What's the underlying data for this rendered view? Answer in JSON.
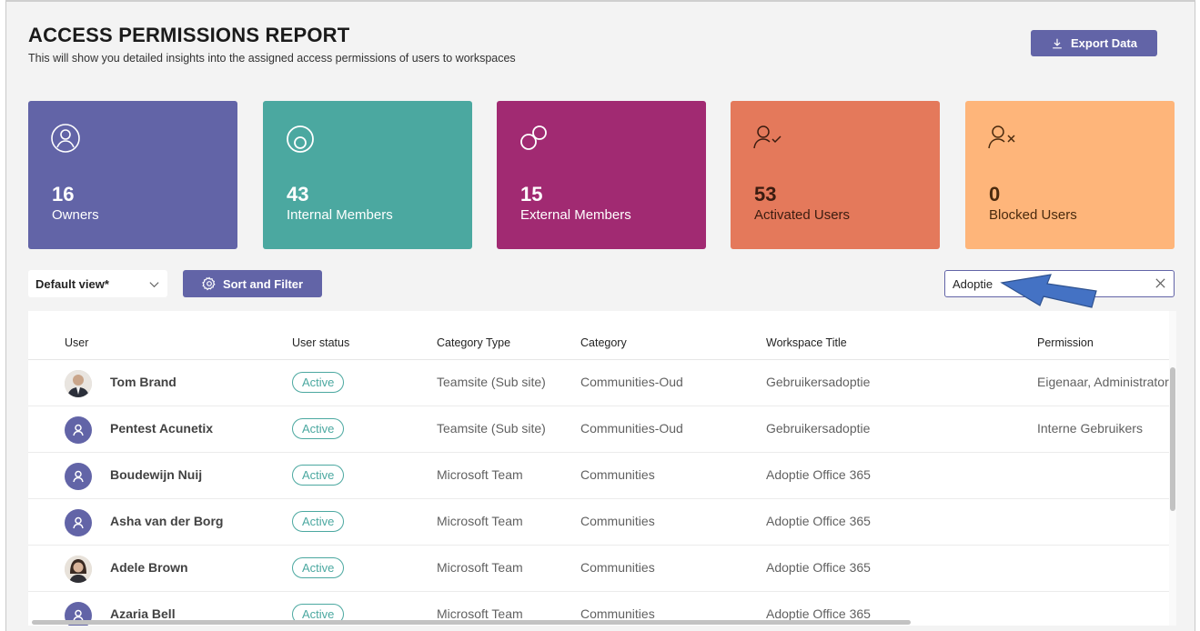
{
  "header": {
    "title": "ACCESS PERMISSIONS REPORT",
    "subtitle": "This will show you detailed insights into the assigned access permissions of users to workspaces",
    "export_label": "Export Data"
  },
  "cards": [
    {
      "value": "16",
      "label": "Owners",
      "icon": "user-circle-icon",
      "color": "#6264a7"
    },
    {
      "value": "43",
      "label": "Internal Members",
      "icon": "internal-member-icon",
      "color": "#4ba8a0"
    },
    {
      "value": "15",
      "label": "External Members",
      "icon": "external-member-icon",
      "color": "#a12a72"
    },
    {
      "value": "53",
      "label": "Activated Users",
      "icon": "user-check-icon",
      "color": "#e4795b"
    },
    {
      "value": "0",
      "label": "Blocked Users",
      "icon": "user-blocked-icon",
      "color": "#feb57a"
    }
  ],
  "toolbar": {
    "view_label": "Default view*",
    "sort_label": "Sort and Filter",
    "search_value": "Adoptie"
  },
  "table": {
    "columns": [
      "User",
      "User status",
      "Category Type",
      "Category",
      "Workspace Title",
      "Permission"
    ],
    "rows": [
      {
        "user": "Tom Brand",
        "status": "Active",
        "category_type": "Teamsite (Sub site)",
        "category": "Communities-Oud",
        "workspace": "Gebruikersadoptie",
        "permission": "Eigenaar, Administrator",
        "avatar": "photo"
      },
      {
        "user": "Pentest Acunetix",
        "status": "Active",
        "category_type": "Teamsite (Sub site)",
        "category": "Communities-Oud",
        "workspace": "Gebruikersadoptie",
        "permission": "Interne Gebruikers",
        "avatar": "default"
      },
      {
        "user": "Boudewijn Nuij",
        "status": "Active",
        "category_type": "Microsoft Team",
        "category": "Communities",
        "workspace": "Adoptie Office 365",
        "permission": "",
        "avatar": "default"
      },
      {
        "user": "Asha van der Borg",
        "status": "Active",
        "category_type": "Microsoft Team",
        "category": "Communities",
        "workspace": "Adoptie Office 365",
        "permission": "",
        "avatar": "default"
      },
      {
        "user": "Adele Brown",
        "status": "Active",
        "category_type": "Microsoft Team",
        "category": "Communities",
        "workspace": "Adoptie Office 365",
        "permission": "",
        "avatar": "photo"
      },
      {
        "user": "Azaria Bell",
        "status": "Active",
        "category_type": "Microsoft Team",
        "category": "Communities",
        "workspace": "Adoptie Office 365",
        "permission": "",
        "avatar": "default"
      }
    ]
  }
}
